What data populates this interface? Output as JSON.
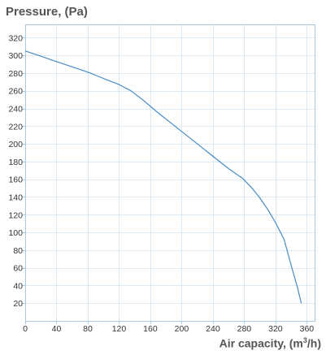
{
  "chart_data": {
    "type": "line",
    "ylabel": "Pressure, (Pa)",
    "xlabel_prefix": "Air capacity, (m",
    "xlabel_sup": "3",
    "xlabel_suffix": "/h)",
    "xlim": [
      0,
      370
    ],
    "ylim": [
      0,
      335
    ],
    "xticks": [
      0,
      40,
      80,
      120,
      160,
      200,
      240,
      280,
      320,
      360
    ],
    "yticks": [
      20,
      40,
      60,
      80,
      100,
      120,
      140,
      160,
      180,
      200,
      220,
      240,
      260,
      280,
      300,
      320
    ],
    "grid": true,
    "line_color": "#4a8cc4",
    "grid_color": "#dbe9f4",
    "axis_color": "#a9c9e3",
    "series": [
      {
        "x": [
          0,
          20,
          40,
          60,
          80,
          100,
          120,
          135,
          150,
          170,
          200,
          230,
          260,
          278,
          290,
          300,
          310,
          320,
          331,
          340,
          348,
          353
        ],
        "y": [
          305,
          299,
          293,
          287,
          281,
          274,
          267,
          260,
          250,
          235,
          214,
          193,
          172,
          161,
          150,
          139,
          126,
          111,
          92,
          63,
          38,
          20
        ]
      }
    ]
  }
}
